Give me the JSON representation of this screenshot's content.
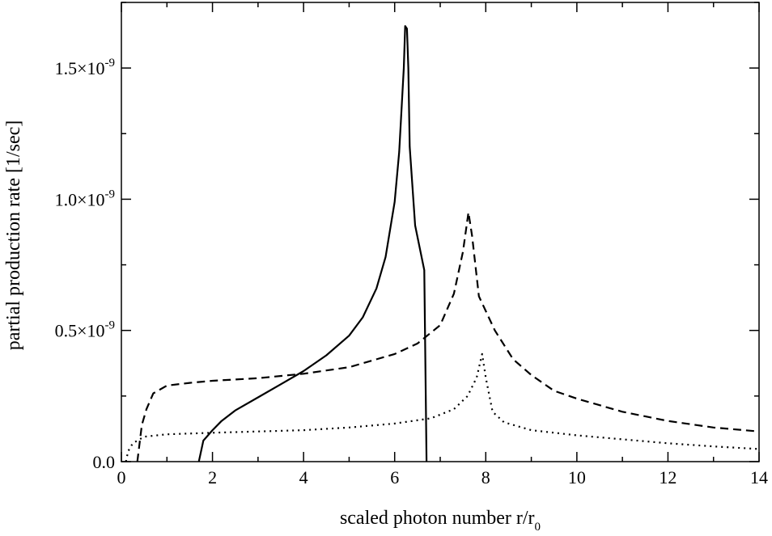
{
  "chart_data": {
    "type": "line",
    "title": "",
    "xlabel": "scaled photon number r/r",
    "xlabel_subscript": "0",
    "ylabel": "partial production rate [1/sec]",
    "xlim": [
      0,
      14
    ],
    "ylim": [
      0,
      1.75e-09
    ],
    "grid": false,
    "legend": "none",
    "x_ticks": [
      {
        "value": 0,
        "label": "0"
      },
      {
        "value": 2,
        "label": "2"
      },
      {
        "value": 4,
        "label": "4"
      },
      {
        "value": 6,
        "label": "6"
      },
      {
        "value": 8,
        "label": "8"
      },
      {
        "value": 10,
        "label": "10"
      },
      {
        "value": 12,
        "label": "12"
      },
      {
        "value": 14,
        "label": "14"
      }
    ],
    "y_ticks": [
      {
        "value": 0,
        "label": "0.0",
        "exp": ""
      },
      {
        "value": 5e-10,
        "label": "0.5×10",
        "exp": "-9"
      },
      {
        "value": 1e-09,
        "label": "1.0×10",
        "exp": "-9"
      },
      {
        "value": 1.5e-09,
        "label": "1.5×10",
        "exp": "-9"
      }
    ],
    "series": [
      {
        "style": "solid",
        "color": "#000000",
        "points": [
          [
            1.7,
            0.0
          ],
          [
            1.8,
            8e-11
          ],
          [
            2.0,
            1.2e-10
          ],
          [
            2.2,
            1.55e-10
          ],
          [
            2.5,
            1.95e-10
          ],
          [
            3.0,
            2.45e-10
          ],
          [
            3.5,
            2.95e-10
          ],
          [
            4.0,
            3.45e-10
          ],
          [
            4.5,
            4.05e-10
          ],
          [
            5.0,
            4.8e-10
          ],
          [
            5.3,
            5.5e-10
          ],
          [
            5.6,
            6.6e-10
          ],
          [
            5.8,
            7.8e-10
          ],
          [
            6.0,
            9.9e-10
          ],
          [
            6.1,
            1.18e-09
          ],
          [
            6.2,
            1.5e-09
          ],
          [
            6.23,
            1.66e-09
          ],
          [
            6.27,
            1.65e-09
          ],
          [
            6.3,
            1.5e-09
          ],
          [
            6.33,
            1.2e-09
          ],
          [
            6.45,
            9e-10
          ],
          [
            6.65,
            7.3e-10
          ],
          [
            6.7,
            0.0
          ]
        ]
      },
      {
        "style": "dashed",
        "color": "#000000",
        "points": [
          [
            0.35,
            0.0
          ],
          [
            0.45,
            1.4e-10
          ],
          [
            0.55,
            2e-10
          ],
          [
            0.7,
            2.6e-10
          ],
          [
            1.0,
            2.9e-10
          ],
          [
            1.5,
            3e-10
          ],
          [
            2.0,
            3.08e-10
          ],
          [
            3.0,
            3.18e-10
          ],
          [
            4.0,
            3.35e-10
          ],
          [
            5.0,
            3.6e-10
          ],
          [
            6.0,
            4.1e-10
          ],
          [
            6.5,
            4.5e-10
          ],
          [
            7.0,
            5.2e-10
          ],
          [
            7.3,
            6.4e-10
          ],
          [
            7.5,
            8e-10
          ],
          [
            7.62,
            9.5e-10
          ],
          [
            7.7,
            8.6e-10
          ],
          [
            7.85,
            6.3e-10
          ],
          [
            8.2,
            5e-10
          ],
          [
            8.6,
            3.9e-10
          ],
          [
            9.0,
            3.3e-10
          ],
          [
            9.5,
            2.7e-10
          ],
          [
            10.0,
            2.4e-10
          ],
          [
            11.0,
            1.9e-10
          ],
          [
            12.0,
            1.55e-10
          ],
          [
            13.0,
            1.3e-10
          ],
          [
            14.0,
            1.15e-10
          ]
        ]
      },
      {
        "style": "dotted",
        "color": "#000000",
        "points": [
          [
            0.1,
            0.0
          ],
          [
            0.15,
            4e-11
          ],
          [
            0.25,
            7e-11
          ],
          [
            0.5,
            9.5e-11
          ],
          [
            1.0,
            1.04e-10
          ],
          [
            2.0,
            1.1e-10
          ],
          [
            3.0,
            1.15e-10
          ],
          [
            4.0,
            1.2e-10
          ],
          [
            5.0,
            1.3e-10
          ],
          [
            6.0,
            1.45e-10
          ],
          [
            6.8,
            1.65e-10
          ],
          [
            7.3,
            2e-10
          ],
          [
            7.6,
            2.5e-10
          ],
          [
            7.8,
            3.2e-10
          ],
          [
            7.92,
            4.1e-10
          ],
          [
            8.0,
            3.2e-10
          ],
          [
            8.15,
            1.9e-10
          ],
          [
            8.4,
            1.5e-10
          ],
          [
            9.0,
            1.2e-10
          ],
          [
            10.0,
            1e-10
          ],
          [
            11.0,
            8.5e-11
          ],
          [
            12.0,
            7e-11
          ],
          [
            13.0,
            5.8e-11
          ],
          [
            14.0,
            4.8e-11
          ]
        ]
      }
    ]
  }
}
